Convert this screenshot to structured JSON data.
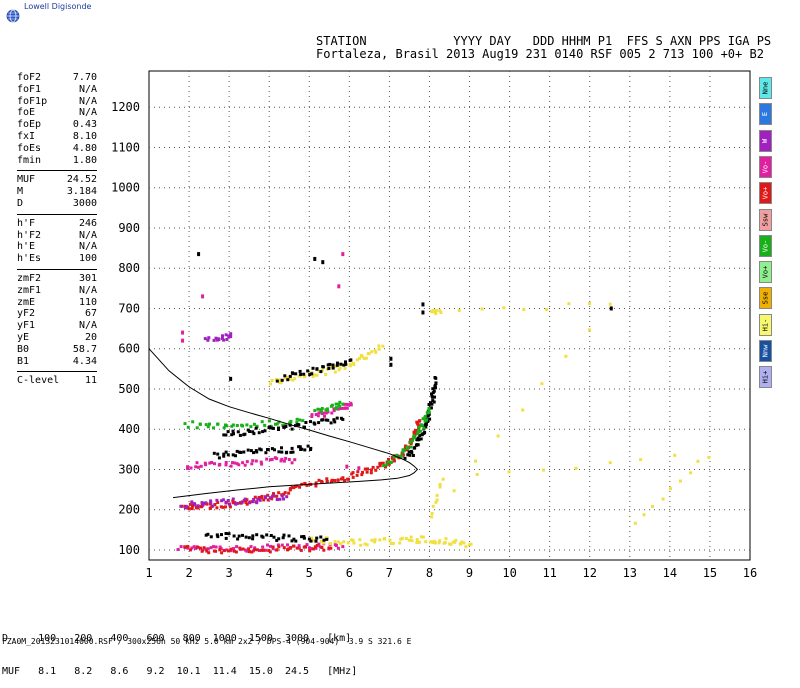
{
  "logo": {
    "text": "Lowell Digisonde",
    "icon": "globe-icon"
  },
  "header": {
    "line1": "STATION            YYYY DAY   DDD HHHM P1  FFS S AXN PPS IGA PS",
    "line2": "Fortaleza, Brasil 2013 Aug19 231 0140 RSF 005 2 713 100 +0+ B2"
  },
  "params": [
    {
      "label": "foF2",
      "value": "7.70"
    },
    {
      "label": "foF1",
      "value": "N/A"
    },
    {
      "label": "foF1p",
      "value": "N/A"
    },
    {
      "label": "foE",
      "value": "N/A"
    },
    {
      "label": "foEp",
      "value": "0.43"
    },
    {
      "label": "fxI",
      "value": "8.10"
    },
    {
      "label": "foEs",
      "value": "4.80"
    },
    {
      "label": "fmin",
      "value": "1.80"
    },
    {
      "sep": true
    },
    {
      "label": "MUF",
      "value": "24.52"
    },
    {
      "label": "M",
      "value": "3.184"
    },
    {
      "label": "D",
      "value": "3000"
    },
    {
      "sep": true
    },
    {
      "label": "h'F",
      "value": "246"
    },
    {
      "label": "h'F2",
      "value": "N/A"
    },
    {
      "label": "h'E",
      "value": "N/A"
    },
    {
      "label": "h'Es",
      "value": "100"
    },
    {
      "sep": true
    },
    {
      "label": "zmF2",
      "value": "301"
    },
    {
      "label": "zmF1",
      "value": "N/A"
    },
    {
      "label": "zmE",
      "value": "110"
    },
    {
      "label": "yF2",
      "value": "67"
    },
    {
      "label": "yF1",
      "value": "N/A"
    },
    {
      "label": "yE",
      "value": "20"
    },
    {
      "label": "B0",
      "value": "58.7"
    },
    {
      "label": "B1",
      "value": "4.34"
    },
    {
      "sep": true
    },
    {
      "label": "C-level",
      "value": "11"
    }
  ],
  "side_buttons": [
    {
      "label": "Nne",
      "color": "#5fe8e8"
    },
    {
      "label": "E",
      "color": "#2a78e0"
    },
    {
      "label": "W",
      "color": "#a020c0"
    },
    {
      "label": "Vo-",
      "color": "#e020a0"
    },
    {
      "label": "Vo+",
      "color": "#e01818"
    },
    {
      "label": "Ssw",
      "color": "#f0a0a0"
    },
    {
      "label": "Vo-",
      "color": "#18b018"
    },
    {
      "label": "Vo+",
      "color": "#90f090"
    },
    {
      "label": "Sse",
      "color": "#f0b000"
    },
    {
      "label": "Hi-",
      "color": "#f8f870"
    },
    {
      "label": "Nnw",
      "color": "#1850a0"
    },
    {
      "label": "Hi+",
      "color": "#b0b0f0"
    }
  ],
  "distance_table": {
    "line1": "D     100   200   400   600   800  1000  1500  3000   [km]",
    "line2": "MUF   8.1   8.2   8.6   9.2  10.1  11.4  15.0  24.5   [MHz]"
  },
  "footer": "FZA0M_2013231014000.RSF / 300x256h 50 kHz 5.0 km 2x2 / DPS-4 (904-904)  3.9 S 321.6 E",
  "chart_data": {
    "type": "scatter",
    "x_ticks": [
      1,
      2,
      3,
      4,
      5,
      6,
      7,
      8,
      9,
      10,
      11,
      12,
      13,
      14,
      15,
      16
    ],
    "y_ticks": [
      100,
      200,
      300,
      400,
      500,
      600,
      700,
      800,
      900,
      1000,
      1100,
      1200
    ],
    "xlim": [
      1,
      16
    ],
    "ylim": [
      75,
      1290
    ],
    "grid": true,
    "profile_curve": {
      "f": [
        1.0,
        1.5,
        2.0,
        2.5,
        3.0,
        3.5,
        4.0,
        4.5,
        5.0,
        5.5,
        6.0,
        6.5,
        7.0,
        7.3,
        7.5,
        7.62,
        7.7,
        7.62,
        7.5,
        7.2,
        6.8,
        6.2,
        5.5,
        4.8,
        4.0,
        3.2,
        2.4,
        1.6
      ],
      "h": [
        600,
        545,
        505,
        475,
        456,
        441,
        427,
        412,
        398,
        383,
        369,
        354,
        339,
        327,
        317,
        308,
        300,
        292,
        285,
        278,
        274,
        270,
        266,
        262,
        257,
        249,
        240,
        230
      ]
    },
    "traces": [
      {
        "color": "#e01818",
        "points": [
          [
            1.8,
            208
          ],
          [
            2.0,
            210
          ],
          [
            2.3,
            212
          ],
          [
            2.6,
            214
          ],
          [
            3.0,
            218
          ],
          [
            3.4,
            224
          ],
          [
            3.8,
            232
          ],
          [
            4.2,
            242
          ],
          [
            4.6,
            254
          ],
          [
            5.0,
            266
          ],
          [
            5.4,
            275
          ],
          [
            5.8,
            283
          ],
          [
            6.2,
            293
          ],
          [
            6.6,
            305
          ],
          [
            6.9,
            318
          ],
          [
            7.1,
            330
          ],
          [
            7.3,
            345
          ],
          [
            7.45,
            362
          ],
          [
            7.55,
            382
          ],
          [
            7.65,
            405
          ],
          [
            7.72,
            425
          ]
        ]
      },
      {
        "color": "#000000",
        "points": [
          [
            7.4,
            330
          ],
          [
            7.6,
            355
          ],
          [
            7.75,
            385
          ],
          [
            7.85,
            410
          ],
          [
            7.95,
            440
          ],
          [
            8.02,
            470
          ],
          [
            8.07,
            500
          ],
          [
            8.12,
            530
          ]
        ]
      },
      {
        "color": "#18b018",
        "points": [
          [
            6.8,
            315
          ],
          [
            7.2,
            340
          ],
          [
            7.5,
            370
          ],
          [
            7.7,
            398
          ],
          [
            7.85,
            428
          ],
          [
            7.95,
            455
          ]
        ]
      },
      {
        "color": "#e020a0",
        "points": [
          [
            1.7,
            110
          ],
          [
            2.2,
            108
          ],
          [
            2.8,
            106
          ],
          [
            3.4,
            108
          ],
          [
            4.0,
            110
          ],
          [
            4.6,
            112
          ],
          [
            5.2,
            114
          ],
          [
            5.8,
            112
          ]
        ]
      },
      {
        "color": "#e01818",
        "points": [
          [
            1.9,
            105
          ],
          [
            2.5,
            104
          ],
          [
            3.1,
            104
          ],
          [
            3.7,
            105
          ],
          [
            4.3,
            106
          ],
          [
            4.9,
            108
          ],
          [
            5.5,
            108
          ]
        ]
      },
      {
        "color": "#f0e040",
        "points": [
          [
            5.0,
            130
          ],
          [
            5.6,
            125
          ],
          [
            6.2,
            122
          ],
          [
            6.8,
            125
          ],
          [
            7.4,
            128
          ],
          [
            7.8,
            130
          ],
          [
            8.2,
            128
          ],
          [
            8.6,
            122
          ],
          [
            9.0,
            118
          ]
        ]
      },
      {
        "color": "#000000",
        "points": [
          [
            2.4,
            140
          ],
          [
            3.0,
            138
          ],
          [
            3.6,
            136
          ],
          [
            4.2,
            134
          ],
          [
            4.8,
            132
          ],
          [
            5.4,
            130
          ]
        ]
      },
      {
        "color": "#a020c0",
        "points": [
          [
            1.8,
            215
          ],
          [
            2.3,
            218
          ],
          [
            2.9,
            222
          ],
          [
            3.4,
            226
          ],
          [
            3.9,
            230
          ],
          [
            4.4,
            236
          ]
        ]
      },
      {
        "color": "#e020a0",
        "points": [
          [
            1.9,
            312
          ],
          [
            2.4,
            315
          ],
          [
            3.0,
            318
          ],
          [
            3.5,
            322
          ],
          [
            4.1,
            326
          ],
          [
            4.6,
            328
          ]
        ]
      },
      {
        "color": "#000000",
        "points": [
          [
            2.6,
            338
          ],
          [
            3.1,
            342
          ],
          [
            3.6,
            346
          ],
          [
            4.1,
            350
          ],
          [
            4.6,
            354
          ],
          [
            5.0,
            356
          ]
        ]
      },
      {
        "color": "#18b018",
        "points": [
          [
            1.9,
            415
          ],
          [
            2.5,
            414
          ],
          [
            3.1,
            414
          ],
          [
            3.7,
            416
          ],
          [
            4.3,
            420
          ],
          [
            4.8,
            425
          ]
        ]
      },
      {
        "color": "#000000",
        "points": [
          [
            2.8,
            390
          ],
          [
            3.3,
            396
          ],
          [
            3.8,
            402
          ],
          [
            4.3,
            408
          ],
          [
            4.8,
            414
          ],
          [
            5.3,
            420
          ],
          [
            5.8,
            428
          ]
        ]
      },
      {
        "color": "#f0e040",
        "points": [
          [
            4.0,
            520
          ],
          [
            4.5,
            528
          ],
          [
            5.0,
            538
          ],
          [
            5.5,
            550
          ],
          [
            6.0,
            566
          ],
          [
            6.4,
            585
          ],
          [
            6.8,
            610
          ]
        ]
      },
      {
        "color": "#000000",
        "points": [
          [
            4.2,
            530
          ],
          [
            4.7,
            540
          ],
          [
            5.2,
            552
          ],
          [
            5.6,
            564
          ],
          [
            6.0,
            576
          ]
        ]
      },
      {
        "color": "#e020a0",
        "points": [
          [
            5.0,
            435
          ],
          [
            5.4,
            445
          ],
          [
            5.8,
            458
          ],
          [
            6.0,
            468
          ]
        ]
      },
      {
        "color": "#18b018",
        "points": [
          [
            5.1,
            448
          ],
          [
            5.5,
            458
          ],
          [
            5.8,
            466
          ]
        ]
      },
      {
        "color": "#a020c0",
        "points": [
          [
            2.4,
            630
          ],
          [
            2.8,
            632
          ],
          [
            3.0,
            634
          ]
        ]
      },
      {
        "color": "#f0e040",
        "points": [
          [
            8.0,
            700
          ],
          [
            8.2,
            690
          ],
          [
            12.5,
            715
          ],
          [
            8.0,
            190
          ],
          [
            8.3,
            280
          ],
          [
            14.9,
            340
          ],
          [
            13.1,
            170
          ]
        ]
      },
      {
        "color": "#000000",
        "points": [
          [
            7.8,
            715
          ],
          [
            12.5,
            705
          ],
          [
            7.8,
            695
          ],
          [
            7.0,
            580
          ],
          [
            2.2,
            840
          ],
          [
            5.1,
            828
          ],
          [
            5.3,
            820
          ],
          [
            3.0,
            530
          ],
          [
            7.0,
            565
          ]
        ]
      },
      {
        "color": "#e020a0",
        "points": [
          [
            2.3,
            735
          ],
          [
            5.8,
            840
          ],
          [
            5.7,
            760
          ],
          [
            1.8,
            645
          ],
          [
            1.8,
            625
          ],
          [
            5.9,
            312
          ],
          [
            6.2,
            308
          ]
        ]
      }
    ]
  }
}
